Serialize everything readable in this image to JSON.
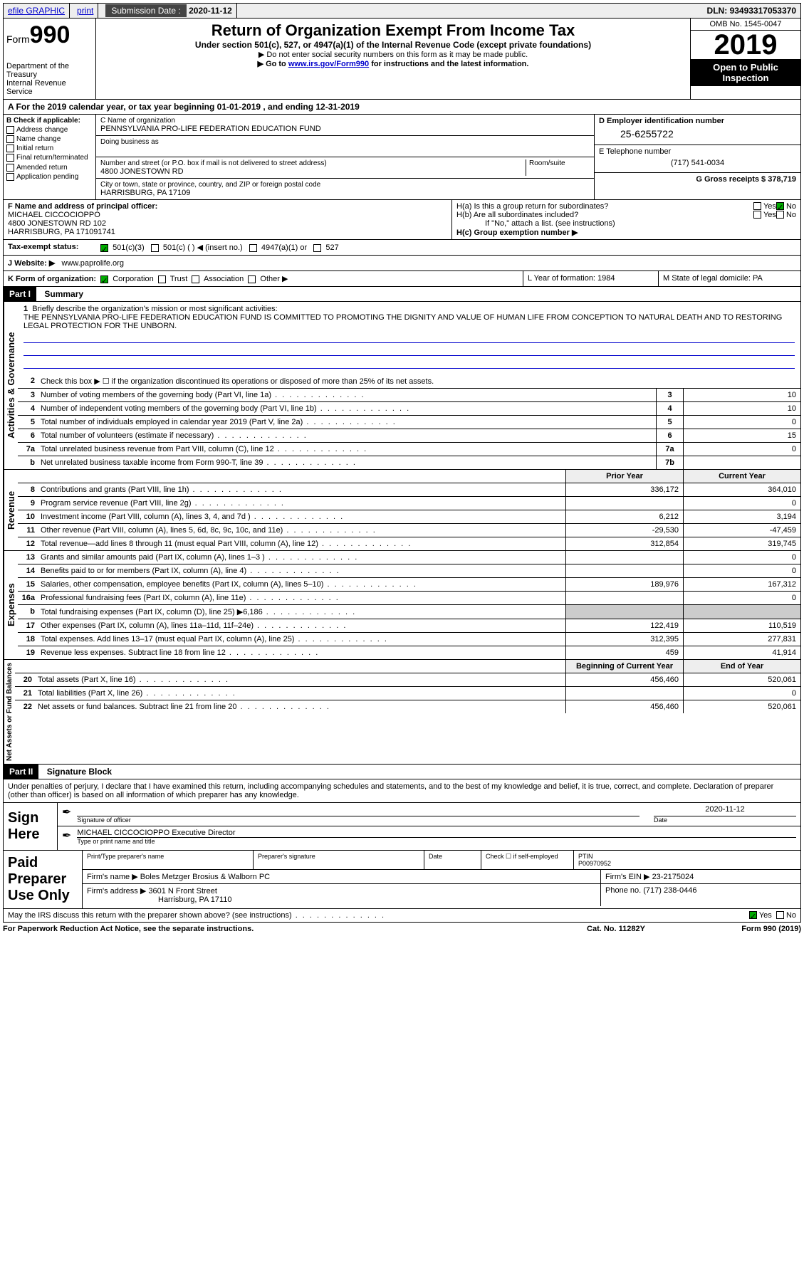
{
  "topbar": {
    "efile": "efile GRAPHIC",
    "print": "print",
    "submission_label": "Submission Date :",
    "submission_date": "2020-11-12",
    "dln_label": "DLN:",
    "dln": "93493317053370"
  },
  "header": {
    "form_label": "Form",
    "form_number": "990",
    "dept": "Department of the Treasury",
    "irs": "Internal Revenue Service",
    "title": "Return of Organization Exempt From Income Tax",
    "subtitle": "Under section 501(c), 527, or 4947(a)(1) of the Internal Revenue Code (except private foundations)",
    "note1": "▶ Do not enter social security numbers on this form as it may be made public.",
    "note2_pre": "▶ Go to ",
    "note2_link": "www.irs.gov/Form990",
    "note2_post": " for instructions and the latest information.",
    "omb": "OMB No. 1545-0047",
    "year": "2019",
    "open": "Open to Public Inspection"
  },
  "rowA": {
    "text": "A For the 2019 calendar year, or tax year beginning 01-01-2019     , and ending 12-31-2019"
  },
  "B": {
    "label": "B Check if applicable:",
    "items": [
      "Address change",
      "Name change",
      "Initial return",
      "Final return/terminated",
      "Amended return",
      "Application pending"
    ]
  },
  "C": {
    "name_label": "C Name of organization",
    "name": "PENNSYLVANIA PRO-LIFE FEDERATION EDUCATION FUND",
    "dba_label": "Doing business as",
    "dba": "",
    "street_label": "Number and street (or P.O. box if mail is not delivered to street address)",
    "room_label": "Room/suite",
    "street": "4800 JONESTOWN RD",
    "city_label": "City or town, state or province, country, and ZIP or foreign postal code",
    "city": "HARRISBURG, PA  17109"
  },
  "D": {
    "label": "D Employer identification number",
    "ein": "25-6255722"
  },
  "E": {
    "label": "E Telephone number",
    "phone": "(717) 541-0034"
  },
  "G": {
    "label": "G Gross receipts $",
    "amount": "378,719"
  },
  "F": {
    "label": "F  Name and address of principal officer:",
    "name": "MICHAEL CICCOCIOPPO",
    "addr1": "4800 JONESTOWN RD 102",
    "addr2": "HARRISBURG, PA  171091741"
  },
  "H": {
    "a_label": "H(a)  Is this a group return for subordinates?",
    "b_label": "H(b)  Are all subordinates included?",
    "note": "If \"No,\" attach a list. (see instructions)",
    "c_label": "H(c)  Group exemption number ▶",
    "yes": "Yes",
    "no": "No"
  },
  "I": {
    "label": "Tax-exempt status:",
    "opts": [
      "501(c)(3)",
      "501(c) (   ) ◀ (insert no.)",
      "4947(a)(1) or",
      "527"
    ]
  },
  "J": {
    "label": "J   Website: ▶",
    "value": "www.paprolife.org"
  },
  "K": {
    "label": "K Form of organization:",
    "opts": [
      "Corporation",
      "Trust",
      "Association",
      "Other ▶"
    ],
    "L": "L Year of formation: 1984",
    "M": "M State of legal domicile: PA"
  },
  "part1": {
    "label": "Part I",
    "title": "Summary",
    "q1": "Briefly describe the organization's mission or most significant activities:",
    "mission": "THE PENNSYLVANIA PRO-LIFE FEDERATION EDUCATION FUND IS COMMITTED TO PROMOTING THE DIGNITY AND VALUE OF HUMAN LIFE FROM CONCEPTION TO NATURAL DEATH AND TO RESTORING LEGAL PROTECTION FOR THE UNBORN.",
    "q2": "Check this box ▶ ☐  if the organization discontinued its operations or disposed of more than 25% of its net assets.",
    "lines_gov": [
      {
        "n": "3",
        "t": "Number of voting members of the governing body (Part VI, line 1a)",
        "box": "3",
        "v": "10"
      },
      {
        "n": "4",
        "t": "Number of independent voting members of the governing body (Part VI, line 1b)",
        "box": "4",
        "v": "10"
      },
      {
        "n": "5",
        "t": "Total number of individuals employed in calendar year 2019 (Part V, line 2a)",
        "box": "5",
        "v": "0"
      },
      {
        "n": "6",
        "t": "Total number of volunteers (estimate if necessary)",
        "box": "6",
        "v": "15"
      },
      {
        "n": "7a",
        "t": "Total unrelated business revenue from Part VIII, column (C), line 12",
        "box": "7a",
        "v": "0"
      },
      {
        "n": "b",
        "t": "Net unrelated business taxable income from Form 990-T, line 39",
        "box": "7b",
        "v": ""
      }
    ],
    "col_headers": {
      "prior": "Prior Year",
      "current": "Current Year"
    },
    "revenue": [
      {
        "n": "8",
        "t": "Contributions and grants (Part VIII, line 1h)",
        "p": "336,172",
        "c": "364,010"
      },
      {
        "n": "9",
        "t": "Program service revenue (Part VIII, line 2g)",
        "p": "",
        "c": "0"
      },
      {
        "n": "10",
        "t": "Investment income (Part VIII, column (A), lines 3, 4, and 7d )",
        "p": "6,212",
        "c": "3,194"
      },
      {
        "n": "11",
        "t": "Other revenue (Part VIII, column (A), lines 5, 6d, 8c, 9c, 10c, and 11e)",
        "p": "-29,530",
        "c": "-47,459"
      },
      {
        "n": "12",
        "t": "Total revenue—add lines 8 through 11 (must equal Part VIII, column (A), line 12)",
        "p": "312,854",
        "c": "319,745"
      }
    ],
    "expenses": [
      {
        "n": "13",
        "t": "Grants and similar amounts paid (Part IX, column (A), lines 1–3 )",
        "p": "",
        "c": "0"
      },
      {
        "n": "14",
        "t": "Benefits paid to or for members (Part IX, column (A), line 4)",
        "p": "",
        "c": "0"
      },
      {
        "n": "15",
        "t": "Salaries, other compensation, employee benefits (Part IX, column (A), lines 5–10)",
        "p": "189,976",
        "c": "167,312"
      },
      {
        "n": "16a",
        "t": "Professional fundraising fees (Part IX, column (A), line 11e)",
        "p": "",
        "c": "0"
      },
      {
        "n": "b",
        "t": "Total fundraising expenses (Part IX, column (D), line 25) ▶6,186",
        "p": "shaded",
        "c": "shaded"
      },
      {
        "n": "17",
        "t": "Other expenses (Part IX, column (A), lines 11a–11d, 11f–24e)",
        "p": "122,419",
        "c": "110,519"
      },
      {
        "n": "18",
        "t": "Total expenses. Add lines 13–17 (must equal Part IX, column (A), line 25)",
        "p": "312,395",
        "c": "277,831"
      },
      {
        "n": "19",
        "t": "Revenue less expenses. Subtract line 18 from line 12",
        "p": "459",
        "c": "41,914"
      }
    ],
    "net_headers": {
      "beg": "Beginning of Current Year",
      "end": "End of Year"
    },
    "net": [
      {
        "n": "20",
        "t": "Total assets (Part X, line 16)",
        "p": "456,460",
        "c": "520,061"
      },
      {
        "n": "21",
        "t": "Total liabilities (Part X, line 26)",
        "p": "",
        "c": "0"
      },
      {
        "n": "22",
        "t": "Net assets or fund balances. Subtract line 21 from line 20",
        "p": "456,460",
        "c": "520,061"
      }
    ],
    "sections": {
      "gov": "Activities & Governance",
      "rev": "Revenue",
      "exp": "Expenses",
      "net": "Net Assets or Fund Balances"
    }
  },
  "part2": {
    "label": "Part II",
    "title": "Signature Block",
    "decl": "Under penalties of perjury, I declare that I have examined this return, including accompanying schedules and statements, and to the best of my knowledge and belief, it is true, correct, and complete. Declaration of preparer (other than officer) is based on all information of which preparer has any knowledge.",
    "sign_here": "Sign Here",
    "sig_officer": "Signature of officer",
    "date_label": "Date",
    "date": "2020-11-12",
    "officer_name": "MICHAEL CICCOCIOPPO  Executive Director",
    "type_name": "Type or print name and title",
    "paid": "Paid Preparer Use Only",
    "prep_name_label": "Print/Type preparer's name",
    "prep_sig_label": "Preparer's signature",
    "check_if": "Check ☐ if self-employed",
    "ptin_label": "PTIN",
    "ptin": "P00970952",
    "firm_name_label": "Firm's name     ▶",
    "firm_name": "Boles Metzger Brosius & Walborn PC",
    "firm_ein_label": "Firm's EIN ▶",
    "firm_ein": "23-2175024",
    "firm_addr_label": "Firm's address ▶",
    "firm_addr": "3601 N Front Street",
    "firm_city": "Harrisburg, PA  17110",
    "phone_label": "Phone no.",
    "phone": "(717) 238-0446",
    "discuss": "May the IRS discuss this return with the preparer shown above? (see instructions)",
    "yes": "Yes",
    "no": "No",
    "paperwork": "For Paperwork Reduction Act Notice, see the separate instructions.",
    "cat": "Cat. No. 11282Y",
    "form_foot": "Form 990 (2019)"
  }
}
